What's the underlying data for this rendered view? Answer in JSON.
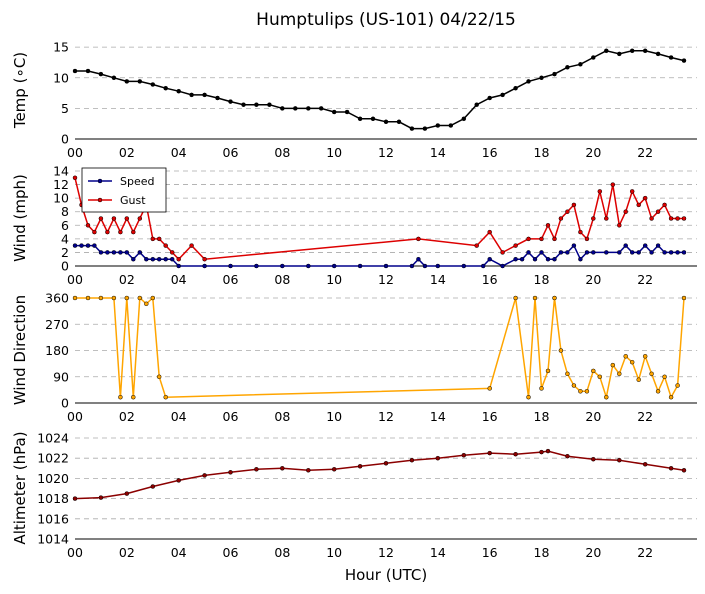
{
  "title": "Humptulips (US-101) 04/22/15",
  "xlabel": "Hour (UTC)",
  "xticks": [
    "00",
    "02",
    "04",
    "06",
    "08",
    "10",
    "12",
    "14",
    "16",
    "18",
    "20",
    "22"
  ],
  "colors": {
    "temp": "#000000",
    "speed": "#00008b",
    "gust": "#dd0000",
    "dir": "#ffa500",
    "altim": "#8b0000",
    "grid": "#aaaaaa"
  },
  "chart_data": [
    {
      "type": "line",
      "ylabel": "Temp (∘C)",
      "ylim": [
        0,
        16
      ],
      "yticks": [
        0,
        5,
        10,
        15
      ],
      "series": [
        {
          "name": "",
          "x": [
            0,
            0.5,
            1,
            1.5,
            2,
            2.5,
            3,
            3.5,
            4,
            4.5,
            5,
            5.5,
            6,
            6.5,
            7,
            7.5,
            8,
            8.5,
            9,
            9.5,
            10,
            10.5,
            11,
            11.5,
            12,
            12.5,
            13,
            13.5,
            14,
            14.5,
            15,
            15.5,
            16,
            16.5,
            17,
            17.5,
            18,
            18.5,
            19,
            19.5,
            20,
            20.5,
            21,
            21.5,
            22,
            22.5,
            23,
            23.5
          ],
          "values": [
            11.1,
            11.1,
            10.6,
            10,
            9.4,
            9.4,
            8.9,
            8.3,
            7.8,
            7.2,
            7.2,
            6.7,
            6.1,
            5.6,
            5.6,
            5.6,
            5,
            5,
            5,
            5,
            4.4,
            4.4,
            3.3,
            3.3,
            2.8,
            2.8,
            1.7,
            1.7,
            2.2,
            2.2,
            3.3,
            5.6,
            6.7,
            7.2,
            8.3,
            9.4,
            10,
            10.6,
            11.7,
            12.2,
            13.3,
            14.4,
            13.9,
            14.4,
            14.4,
            13.9,
            13.3,
            12.8
          ]
        }
      ]
    },
    {
      "type": "line",
      "ylabel": "Wind (mph)",
      "ylim": [
        0,
        14
      ],
      "yticks": [
        0,
        2,
        4,
        6,
        8,
        10,
        12,
        14
      ],
      "legend": {
        "position": "upper-left",
        "entries": [
          "Speed",
          "Gust"
        ]
      },
      "series": [
        {
          "name": "Speed",
          "x": [
            0,
            0.25,
            0.5,
            0.75,
            1,
            1.25,
            1.5,
            1.75,
            2,
            2.25,
            2.5,
            2.75,
            3,
            3.25,
            3.5,
            3.75,
            4,
            5,
            6,
            7,
            8,
            9,
            10,
            11,
            12,
            13,
            13.25,
            13.5,
            14,
            15,
            15.75,
            16,
            16.5,
            17,
            17.25,
            17.5,
            17.75,
            18,
            18.25,
            18.5,
            18.75,
            19,
            19.25,
            19.5,
            19.75,
            20,
            20.5,
            21,
            21.25,
            21.5,
            21.75,
            22,
            22.25,
            22.5,
            22.75,
            23,
            23.25,
            23.5
          ],
          "values": [
            3,
            3,
            3,
            3,
            2,
            2,
            2,
            2,
            2,
            1,
            2,
            1,
            1,
            1,
            1,
            1,
            0,
            0,
            0,
            0,
            0,
            0,
            0,
            0,
            0,
            0,
            1,
            0,
            0,
            0,
            0,
            1,
            0,
            1,
            1,
            2,
            1,
            2,
            1,
            1,
            2,
            2,
            3,
            1,
            2,
            2,
            2,
            2,
            3,
            2,
            2,
            3,
            2,
            3,
            2,
            2,
            2,
            2
          ]
        },
        {
          "name": "Gust",
          "x": [
            0,
            0.25,
            0.5,
            0.75,
            1,
            1.25,
            1.5,
            1.75,
            2,
            2.25,
            2.5,
            2.75,
            3,
            3.25,
            3.5,
            3.75,
            4,
            4.5,
            5,
            13.25,
            15.5,
            16,
            16.5,
            17,
            17.5,
            18,
            18.25,
            18.5,
            18.75,
            19,
            19.25,
            19.5,
            19.75,
            20,
            20.25,
            20.5,
            20.75,
            21,
            21.25,
            21.5,
            21.75,
            22,
            22.25,
            22.5,
            22.75,
            23,
            23.25,
            23.5
          ],
          "values": [
            13,
            9,
            6,
            5,
            7,
            5,
            7,
            5,
            7,
            5,
            7,
            9,
            4,
            4,
            3,
            2,
            1,
            3,
            1,
            4,
            3,
            5,
            2,
            3,
            4,
            4,
            6,
            4,
            7,
            8,
            9,
            5,
            4,
            7,
            11,
            7,
            12,
            6,
            8,
            11,
            9,
            10,
            7,
            8,
            9,
            7,
            7,
            7
          ]
        }
      ]
    },
    {
      "type": "line",
      "ylabel": "Wind Direction",
      "ylim": [
        0,
        360
      ],
      "yticks": [
        0,
        90,
        180,
        270,
        360
      ],
      "series": [
        {
          "name": "",
          "x": [
            0,
            0.5,
            1,
            1.5,
            1.75,
            2,
            2.25,
            2.5,
            2.75,
            3,
            3.25,
            3.5,
            16,
            17,
            17.5,
            17.75,
            18,
            18.25,
            18.5,
            18.75,
            19,
            19.25,
            19.5,
            19.75,
            20,
            20.25,
            20.5,
            20.75,
            21,
            21.25,
            21.5,
            21.75,
            22,
            22.25,
            22.5,
            22.75,
            23,
            23.25,
            23.5
          ],
          "values": [
            360,
            360,
            360,
            360,
            20,
            360,
            20,
            360,
            340,
            360,
            90,
            20,
            50,
            360,
            20,
            360,
            50,
            110,
            360,
            180,
            100,
            60,
            40,
            40,
            110,
            90,
            20,
            130,
            100,
            160,
            140,
            80,
            160,
            100,
            40,
            90,
            20,
            60,
            360
          ]
        }
      ]
    },
    {
      "type": "line",
      "ylabel": "Altimeter (hPa)",
      "ylim": [
        1014,
        1024
      ],
      "yticks": [
        1014,
        1016,
        1018,
        1020,
        1022,
        1024
      ],
      "series": [
        {
          "name": "",
          "x": [
            0,
            1,
            2,
            3,
            4,
            5,
            6,
            7,
            8,
            9,
            10,
            11,
            12,
            13,
            14,
            15,
            16,
            17,
            18,
            18.25,
            19,
            20,
            21,
            22,
            23,
            23.5
          ],
          "values": [
            1018,
            1018.1,
            1018.5,
            1019.2,
            1019.8,
            1020.3,
            1020.6,
            1020.9,
            1021,
            1020.8,
            1020.9,
            1021.2,
            1021.5,
            1021.8,
            1022,
            1022.3,
            1022.5,
            1022.4,
            1022.6,
            1022.7,
            1022.2,
            1021.9,
            1021.8,
            1021.4,
            1021,
            1020.8
          ]
        }
      ]
    }
  ]
}
